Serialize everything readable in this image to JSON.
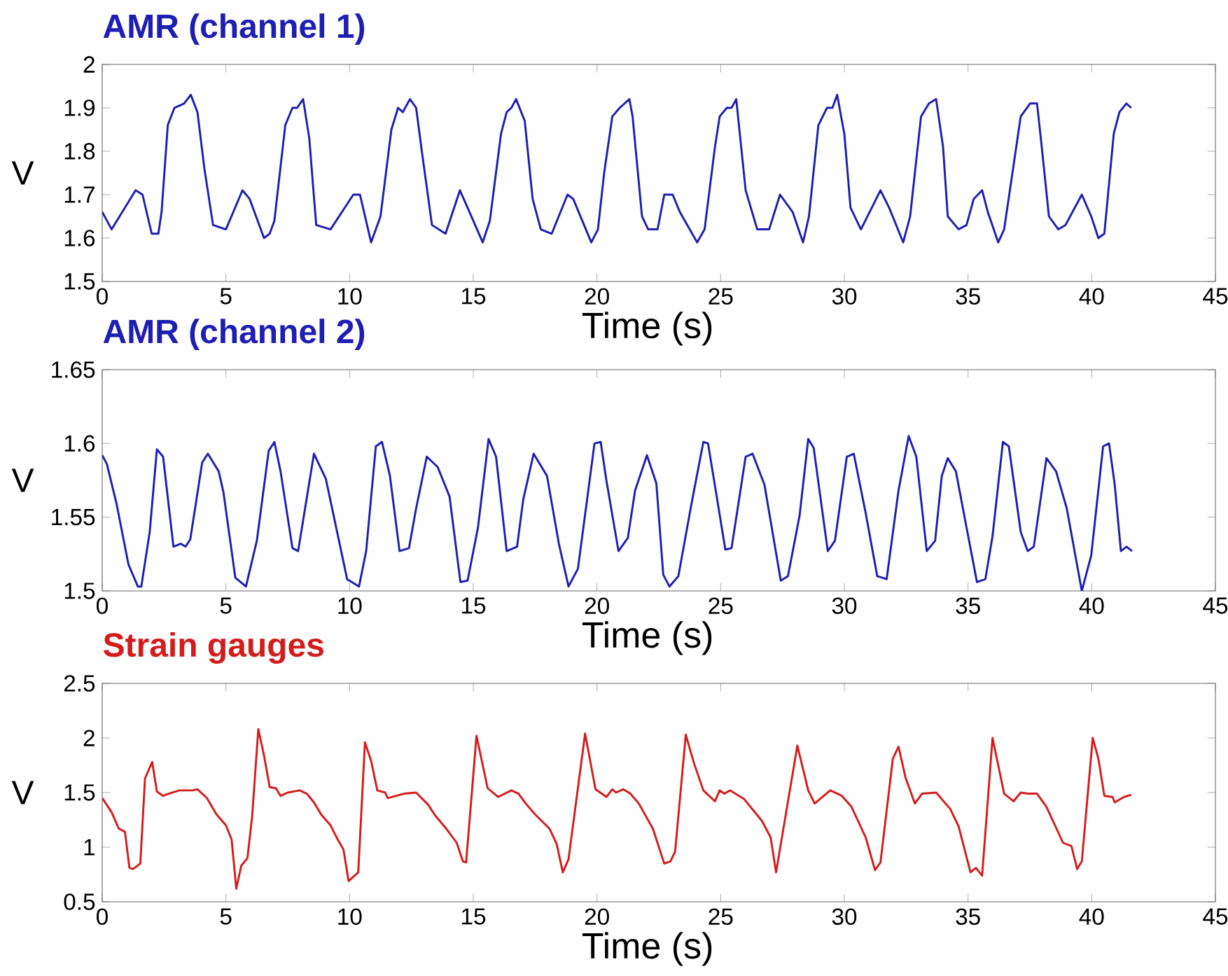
{
  "chart_data": [
    {
      "type": "line",
      "title": "AMR (channel 1)",
      "xlabel": "Time (s)",
      "ylabel": "V",
      "xlim": [
        0,
        45
      ],
      "xticks": [
        0,
        5,
        10,
        15,
        20,
        25,
        30,
        35,
        40,
        45
      ],
      "ylim": [
        1.5,
        2
      ],
      "yticks": [
        1.5,
        1.6,
        1.7,
        1.8,
        1.9,
        2
      ],
      "x": [
        0,
        0.38,
        1.35,
        1.63,
        2.0,
        2.27,
        2.4,
        2.65,
        2.92,
        3.31,
        3.58,
        3.85,
        4.13,
        4.48,
        5.0,
        5.67,
        5.96,
        6.54,
        6.77,
        6.96,
        7.4,
        7.69,
        7.88,
        8.12,
        8.37,
        8.65,
        9.23,
        10.15,
        10.42,
        10.87,
        11.25,
        11.69,
        11.96,
        12.15,
        12.44,
        12.69,
        12.92,
        13.33,
        13.88,
        14.46,
        14.77,
        15.38,
        15.67,
        16.12,
        16.35,
        16.54,
        16.73,
        17.08,
        17.4,
        17.73,
        18.17,
        18.81,
        19.04,
        19.77,
        20.04,
        20.29,
        20.62,
        20.92,
        21.31,
        21.44,
        21.82,
        22.07,
        22.45,
        22.72,
        23.06,
        23.35,
        24.05,
        24.35,
        24.77,
        24.96,
        25.25,
        25.44,
        25.63,
        26.01,
        26.48,
        26.96,
        27.4,
        27.91,
        28.33,
        28.57,
        28.95,
        29.3,
        29.52,
        29.71,
        30.0,
        30.25,
        30.67,
        31.46,
        31.81,
        32.38,
        32.66,
        33.1,
        33.42,
        33.71,
        33.99,
        34.18,
        34.62,
        34.94,
        35.23,
        35.57,
        35.8,
        36.22,
        36.46,
        37.13,
        37.51,
        37.79,
        37.98,
        38.27,
        38.65,
        38.94,
        39.6,
        39.98,
        40.27,
        40.51,
        40.89,
        41.12,
        41.4,
        41.6
      ],
      "series": [
        {
          "color": "#1e1eb4",
          "values": [
            1.66,
            1.62,
            1.71,
            1.7,
            1.61,
            1.61,
            1.66,
            1.86,
            1.9,
            1.91,
            1.93,
            1.89,
            1.76,
            1.63,
            1.62,
            1.71,
            1.69,
            1.6,
            1.61,
            1.64,
            1.86,
            1.9,
            1.9,
            1.92,
            1.83,
            1.63,
            1.62,
            1.7,
            1.7,
            1.59,
            1.65,
            1.85,
            1.9,
            1.89,
            1.92,
            1.9,
            1.8,
            1.63,
            1.61,
            1.71,
            1.67,
            1.59,
            1.64,
            1.84,
            1.89,
            1.9,
            1.92,
            1.87,
            1.69,
            1.62,
            1.61,
            1.7,
            1.69,
            1.59,
            1.62,
            1.75,
            1.88,
            1.9,
            1.92,
            1.88,
            1.65,
            1.62,
            1.62,
            1.7,
            1.7,
            1.66,
            1.59,
            1.62,
            1.81,
            1.88,
            1.9,
            1.9,
            1.92,
            1.71,
            1.62,
            1.62,
            1.7,
            1.66,
            1.59,
            1.65,
            1.86,
            1.9,
            1.9,
            1.93,
            1.84,
            1.67,
            1.62,
            1.71,
            1.67,
            1.59,
            1.65,
            1.88,
            1.91,
            1.92,
            1.81,
            1.65,
            1.62,
            1.63,
            1.69,
            1.71,
            1.66,
            1.59,
            1.62,
            1.88,
            1.91,
            1.91,
            1.81,
            1.65,
            1.62,
            1.63,
            1.7,
            1.65,
            1.6,
            1.61,
            1.84,
            1.89,
            1.91,
            1.9
          ]
        }
      ]
    },
    {
      "type": "line",
      "title": "AMR (channel 2)",
      "xlabel": "Time (s)",
      "ylabel": "V",
      "xlim": [
        0,
        45
      ],
      "xticks": [
        0,
        5,
        10,
        15,
        20,
        25,
        30,
        35,
        40,
        45
      ],
      "ylim": [
        1.5,
        1.65
      ],
      "yticks": [
        1.5,
        1.55,
        1.6,
        1.65
      ],
      "x": [
        0,
        0.19,
        0.58,
        1.06,
        1.44,
        1.58,
        1.92,
        2.21,
        2.46,
        2.88,
        3.17,
        3.37,
        3.56,
        4.04,
        4.27,
        4.71,
        4.9,
        5.38,
        5.81,
        6.25,
        6.73,
        6.96,
        7.21,
        7.69,
        7.92,
        8.56,
        9.04,
        9.9,
        10.38,
        10.67,
        11.06,
        11.31,
        11.63,
        12.02,
        12.4,
        12.69,
        13.12,
        13.56,
        14.04,
        14.48,
        14.77,
        15.19,
        15.62,
        15.92,
        16.35,
        16.77,
        17.02,
        17.44,
        17.98,
        18.46,
        18.85,
        19.23,
        19.9,
        20.15,
        20.38,
        20.87,
        21.25,
        21.54,
        22.02,
        22.4,
        22.68,
        22.93,
        23.29,
        23.82,
        24.3,
        24.49,
        25.19,
        25.44,
        26.01,
        26.29,
        26.77,
        27.43,
        27.72,
        28.19,
        28.54,
        28.76,
        29.33,
        29.62,
        30.1,
        30.38,
        30.86,
        31.33,
        31.71,
        32.19,
        32.6,
        32.91,
        33.33,
        33.67,
        33.94,
        34.18,
        34.51,
        34.94,
        35.36,
        35.7,
        35.99,
        36.41,
        36.65,
        37.13,
        37.41,
        37.66,
        38.17,
        38.56,
        38.99,
        39.6,
        39.98,
        40.46,
        40.7,
        40.93,
        41.18,
        41.41,
        41.63
      ],
      "series": [
        {
          "color": "#1e1eb4",
          "values": [
            1.592,
            1.586,
            1.559,
            1.518,
            1.503,
            1.503,
            1.54,
            1.596,
            1.591,
            1.53,
            1.532,
            1.53,
            1.535,
            1.587,
            1.593,
            1.581,
            1.567,
            1.509,
            1.503,
            1.534,
            1.595,
            1.601,
            1.581,
            1.529,
            1.527,
            1.593,
            1.576,
            1.508,
            1.503,
            1.527,
            1.598,
            1.601,
            1.578,
            1.527,
            1.529,
            1.556,
            1.591,
            1.584,
            1.564,
            1.506,
            1.507,
            1.543,
            1.603,
            1.591,
            1.527,
            1.53,
            1.562,
            1.593,
            1.578,
            1.532,
            1.503,
            1.515,
            1.6,
            1.601,
            1.575,
            1.527,
            1.536,
            1.568,
            1.592,
            1.573,
            1.511,
            1.503,
            1.51,
            1.559,
            1.601,
            1.6,
            1.528,
            1.529,
            1.591,
            1.593,
            1.572,
            1.507,
            1.51,
            1.551,
            1.603,
            1.597,
            1.527,
            1.534,
            1.591,
            1.593,
            1.553,
            1.51,
            1.508,
            1.568,
            1.605,
            1.591,
            1.527,
            1.534,
            1.578,
            1.59,
            1.581,
            1.543,
            1.506,
            1.508,
            1.537,
            1.601,
            1.598,
            1.54,
            1.527,
            1.53,
            1.59,
            1.581,
            1.556,
            1.5,
            1.524,
            1.598,
            1.6,
            1.572,
            1.527,
            1.53,
            1.527
          ]
        }
      ]
    },
    {
      "type": "line",
      "title": "Strain gauges",
      "xlabel": "Time (s)",
      "ylabel": "V",
      "xlim": [
        0,
        45
      ],
      "xticks": [
        0,
        5,
        10,
        15,
        20,
        25,
        30,
        35,
        40,
        45
      ],
      "ylim": [
        0.5,
        2.5
      ],
      "yticks": [
        0.5,
        1,
        1.5,
        2,
        2.5
      ],
      "x": [
        0,
        0.38,
        0.67,
        0.92,
        1.1,
        1.25,
        1.54,
        1.73,
        2.02,
        2.21,
        2.46,
        2.69,
        3.12,
        3.65,
        3.85,
        4.23,
        4.62,
        5.0,
        5.23,
        5.42,
        5.62,
        5.87,
        6.06,
        6.31,
        6.54,
        6.77,
        7.02,
        7.21,
        7.5,
        7.98,
        8.27,
        8.56,
        8.85,
        9.23,
        9.52,
        9.75,
        9.96,
        10.35,
        10.62,
        10.87,
        11.12,
        11.44,
        11.54,
        12.21,
        12.69,
        13.17,
        13.46,
        13.94,
        14.33,
        14.58,
        14.71,
        15.13,
        15.58,
        16.0,
        16.54,
        16.83,
        17.12,
        17.5,
        18.08,
        18.37,
        18.62,
        18.85,
        19.52,
        19.94,
        20.38,
        20.62,
        20.77,
        21.06,
        21.35,
        21.69,
        22.26,
        22.72,
        22.97,
        23.16,
        23.59,
        23.92,
        24.3,
        24.77,
        24.96,
        25.15,
        25.38,
        25.95,
        26.67,
        27.02,
        27.24,
        28.1,
        28.54,
        28.8,
        29.43,
        29.9,
        30.29,
        30.86,
        31.24,
        31.46,
        31.96,
        32.19,
        32.47,
        32.85,
        33.14,
        33.71,
        34.28,
        34.62,
        35.1,
        35.32,
        35.57,
        35.99,
        36.46,
        36.84,
        37.13,
        37.41,
        37.79,
        38.17,
        38.84,
        39.18,
        39.41,
        39.6,
        40.04,
        40.27,
        40.51,
        40.84,
        40.93,
        41.31,
        41.6
      ],
      "series": [
        {
          "color": "#d41c1c",
          "values": [
            1.45,
            1.32,
            1.17,
            1.14,
            0.81,
            0.8,
            0.85,
            1.63,
            1.78,
            1.51,
            1.47,
            1.49,
            1.52,
            1.52,
            1.53,
            1.45,
            1.3,
            1.2,
            1.07,
            0.62,
            0.83,
            0.9,
            1.28,
            2.08,
            1.84,
            1.55,
            1.54,
            1.47,
            1.5,
            1.52,
            1.49,
            1.41,
            1.3,
            1.2,
            1.07,
            0.98,
            0.69,
            0.77,
            1.96,
            1.79,
            1.52,
            1.5,
            1.45,
            1.49,
            1.5,
            1.39,
            1.29,
            1.16,
            1.04,
            0.87,
            0.86,
            2.02,
            1.54,
            1.46,
            1.52,
            1.49,
            1.4,
            1.3,
            1.17,
            1.03,
            0.77,
            0.89,
            2.04,
            1.53,
            1.46,
            1.53,
            1.5,
            1.53,
            1.49,
            1.4,
            1.17,
            0.85,
            0.87,
            0.96,
            2.03,
            1.77,
            1.52,
            1.42,
            1.52,
            1.49,
            1.52,
            1.44,
            1.24,
            1.09,
            0.77,
            1.93,
            1.52,
            1.4,
            1.52,
            1.47,
            1.37,
            1.09,
            0.79,
            0.86,
            1.81,
            1.92,
            1.64,
            1.4,
            1.49,
            1.5,
            1.35,
            1.19,
            0.77,
            0.81,
            0.74,
            2.0,
            1.49,
            1.42,
            1.5,
            1.49,
            1.49,
            1.37,
            1.04,
            1.01,
            0.8,
            0.87,
            2.0,
            1.81,
            1.47,
            1.46,
            1.41,
            1.46,
            1.48
          ]
        }
      ]
    }
  ]
}
